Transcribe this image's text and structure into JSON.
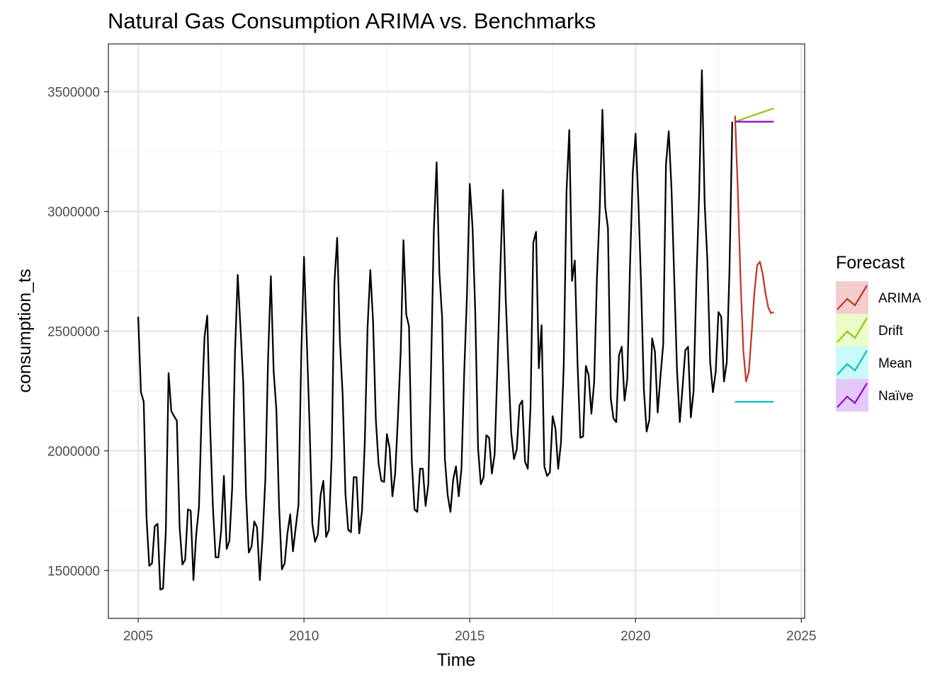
{
  "chart_data": {
    "type": "line",
    "title": "Natural Gas Consumption ARIMA vs. Benchmarks",
    "xlabel": "Time",
    "ylabel": "consumption_ts",
    "xlim": [
      2004.1,
      2025.1
    ],
    "ylim": [
      1300000,
      3700000
    ],
    "x_ticks": [
      2005,
      2010,
      2015,
      2020,
      2025
    ],
    "y_ticks": [
      1500000,
      2000000,
      2500000,
      3000000,
      3500000
    ],
    "x_tick_labels": [
      "2005",
      "2010",
      "2015",
      "2020",
      "2025"
    ],
    "y_tick_labels": [
      "1500000",
      "2000000",
      "2500000",
      "3000000",
      "3500000"
    ],
    "grid": true,
    "legend": {
      "title": "Forecast",
      "position": "right",
      "entries": [
        {
          "label": "ARIMA",
          "color": "#c0392b",
          "fill": "#f5cccc"
        },
        {
          "label": "Drift",
          "color": "#a3c017",
          "fill": "#eafcc8"
        },
        {
          "label": "Mean",
          "color": "#16bcbc",
          "fill": "#c8fafa"
        },
        {
          "label": "Naïve",
          "color": "#8e14c9",
          "fill": "#e4c8fa"
        }
      ]
    },
    "history": {
      "start_year": 2005,
      "frequency": 12,
      "color": "#000000",
      "values": [
        2560000,
        2245000,
        2205000,
        1725000,
        1520000,
        1530000,
        1685000,
        1695000,
        1420000,
        1425000,
        1665000,
        2325000,
        2165000,
        2145000,
        2125000,
        1680000,
        1525000,
        1545000,
        1755000,
        1750000,
        1460000,
        1650000,
        1765000,
        2175000,
        2475000,
        2565000,
        2115000,
        1770000,
        1555000,
        1555000,
        1665000,
        1895000,
        1590000,
        1625000,
        1845000,
        2405000,
        2735000,
        2515000,
        2285000,
        1820000,
        1575000,
        1600000,
        1705000,
        1680000,
        1460000,
        1640000,
        1880000,
        2390000,
        2730000,
        2335000,
        2170000,
        1760000,
        1505000,
        1530000,
        1655000,
        1735000,
        1580000,
        1680000,
        1775000,
        2400000,
        2810000,
        2460000,
        2110000,
        1695000,
        1620000,
        1650000,
        1815000,
        1875000,
        1640000,
        1670000,
        1975000,
        2700000,
        2890000,
        2460000,
        2230000,
        1820000,
        1670000,
        1660000,
        1890000,
        1890000,
        1655000,
        1750000,
        2035000,
        2515000,
        2755000,
        2540000,
        2130000,
        1945000,
        1875000,
        1870000,
        2070000,
        2010000,
        1810000,
        1905000,
        2140000,
        2415000,
        2880000,
        2570000,
        2520000,
        1960000,
        1755000,
        1745000,
        1925000,
        1925000,
        1770000,
        1860000,
        2350000,
        2920000,
        3205000,
        2745000,
        2555000,
        1965000,
        1815000,
        1745000,
        1880000,
        1935000,
        1810000,
        1925000,
        2330000,
        2655000,
        3115000,
        2935000,
        2575000,
        2010000,
        1860000,
        1890000,
        2065000,
        2055000,
        1905000,
        1985000,
        2345000,
        2735000,
        3090000,
        2640000,
        2350000,
        2075000,
        1965000,
        2005000,
        2190000,
        2210000,
        1955000,
        1925000,
        2185000,
        2870000,
        2915000,
        2345000,
        2525000,
        1935000,
        1895000,
        1910000,
        2145000,
        2095000,
        1925000,
        2035000,
        2360000,
        3085000,
        3340000,
        2710000,
        2795000,
        2360000,
        2055000,
        2060000,
        2355000,
        2315000,
        2155000,
        2285000,
        2720000,
        3005000,
        3425000,
        3020000,
        2930000,
        2220000,
        2135000,
        2120000,
        2400000,
        2435000,
        2210000,
        2300000,
        2780000,
        3165000,
        3325000,
        3045000,
        2690000,
        2255000,
        2080000,
        2130000,
        2470000,
        2415000,
        2160000,
        2310000,
        2445000,
        3195000,
        3335000,
        3095000,
        2720000,
        2335000,
        2120000,
        2265000,
        2420000,
        2435000,
        2140000,
        2250000,
        2705000,
        3070000,
        3590000,
        3035000,
        2790000,
        2370000,
        2245000,
        2330000,
        2580000,
        2560000,
        2290000,
        2370000,
        2760000,
        3375000
      ]
    },
    "forecasts": [
      {
        "name": "ARIMA",
        "color": "#c0392b",
        "start": 2023.0,
        "values": [
          3400000,
          3090000,
          2710000,
          2420000,
          2290000,
          2330000,
          2490000,
          2660000,
          2775000,
          2790000,
          2740000,
          2660000,
          2600000,
          2575000,
          2580000
        ]
      },
      {
        "name": "Drift",
        "color": "#a3c017",
        "start": 2023.0,
        "values": [
          3375000,
          3379000,
          3383000,
          3387000,
          3391000,
          3395000,
          3399000,
          3403000,
          3407000,
          3411000,
          3415000,
          3419000,
          3423000,
          3427000,
          3431000
        ]
      },
      {
        "name": "Mean",
        "color": "#16bcbc",
        "start": 2023.0,
        "values": [
          2205000,
          2205000,
          2205000,
          2205000,
          2205000,
          2205000,
          2205000,
          2205000,
          2205000,
          2205000,
          2205000,
          2205000,
          2205000,
          2205000,
          2205000
        ]
      },
      {
        "name": "Naïve",
        "color": "#8e14c9",
        "start": 2023.0,
        "values": [
          3375000,
          3375000,
          3375000,
          3375000,
          3375000,
          3375000,
          3375000,
          3375000,
          3375000,
          3375000,
          3375000,
          3375000,
          3375000,
          3375000,
          3375000
        ]
      }
    ]
  }
}
